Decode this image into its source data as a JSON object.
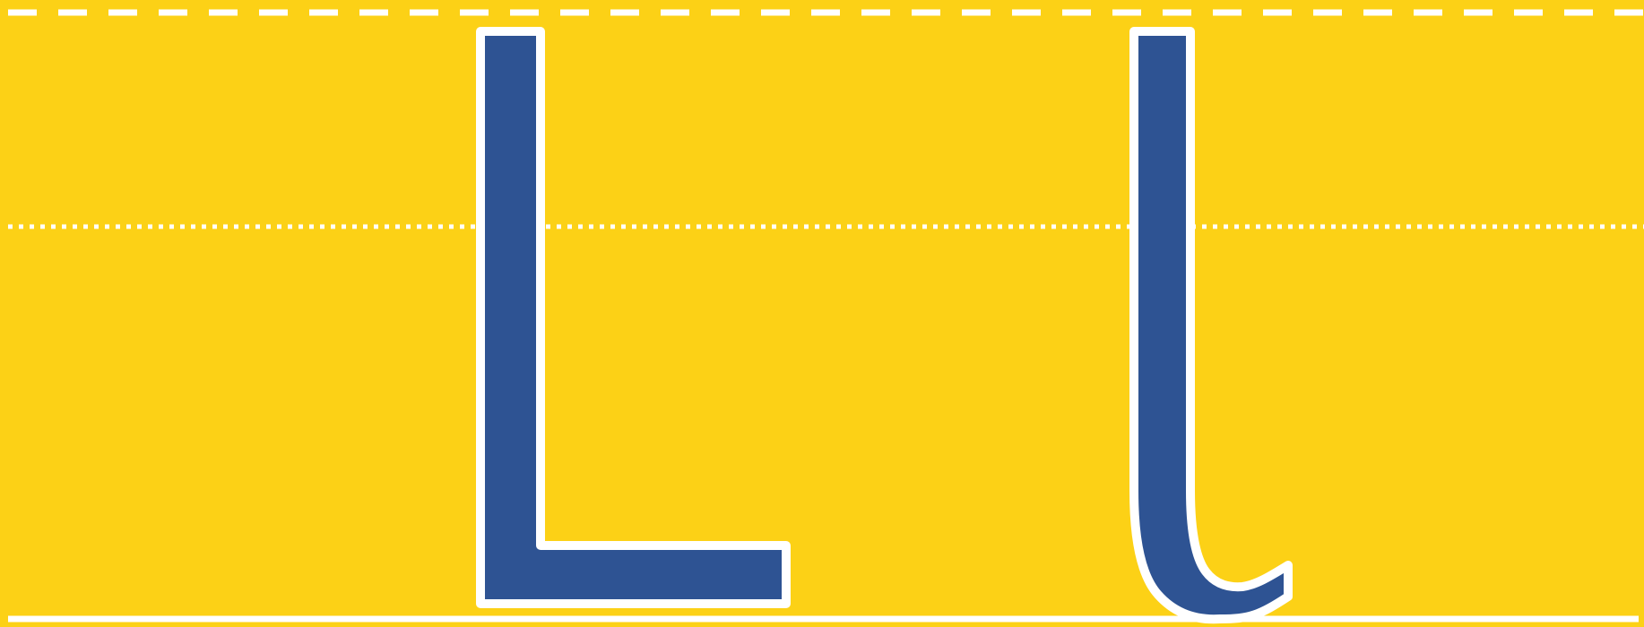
{
  "letters": {
    "uppercase": "L",
    "lowercase": "l"
  },
  "colors": {
    "background": "#FCD116",
    "letter_fill": "#2E5393",
    "outline": "#FFFFFF",
    "guide_lines": "#FFFFFF"
  }
}
